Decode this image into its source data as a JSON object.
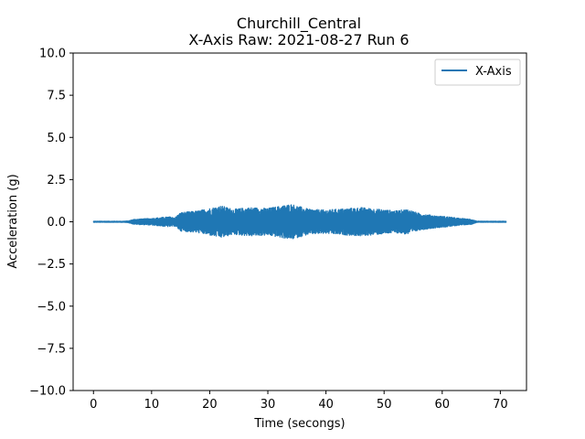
{
  "chart_data": {
    "type": "line",
    "title": "Churchill_Central",
    "subtitle": "X-Axis Raw: 2021-08-27 Run 6",
    "xlabel": "Time (secongs)",
    "ylabel": "Acceleration (g)",
    "xlim": [
      -3.5,
      74.5
    ],
    "ylim": [
      -10.0,
      10.0
    ],
    "xticks": [
      0,
      10,
      20,
      30,
      40,
      50,
      60,
      70
    ],
    "xtick_labels": [
      "0",
      "10",
      "20",
      "30",
      "40",
      "50",
      "60",
      "70"
    ],
    "yticks": [
      -10.0,
      -7.5,
      -5.0,
      -2.5,
      0.0,
      2.5,
      5.0,
      7.5,
      10.0
    ],
    "ytick_labels": [
      "−10.0",
      "−7.5",
      "−5.0",
      "−2.5",
      "0.0",
      "2.5",
      "5.0",
      "7.5",
      "10.0"
    ],
    "grid": false,
    "legend_position": "top-right",
    "series": [
      {
        "name": "X-Axis",
        "color": "#1f77b4",
        "t_start": 0,
        "t_end": 71,
        "envelope_points": [
          [
            0,
            0.03
          ],
          [
            5,
            0.03
          ],
          [
            6,
            0.05
          ],
          [
            7,
            0.15
          ],
          [
            10,
            0.2
          ],
          [
            13,
            0.3
          ],
          [
            14,
            0.25
          ],
          [
            15,
            0.55
          ],
          [
            18,
            0.65
          ],
          [
            22,
            0.95
          ],
          [
            24,
            0.75
          ],
          [
            27,
            0.85
          ],
          [
            30,
            0.8
          ],
          [
            34,
            1.05
          ],
          [
            37,
            0.75
          ],
          [
            40,
            0.7
          ],
          [
            46,
            0.85
          ],
          [
            49,
            0.75
          ],
          [
            52,
            0.65
          ],
          [
            54,
            0.75
          ],
          [
            56,
            0.5
          ],
          [
            59,
            0.35
          ],
          [
            61,
            0.3
          ],
          [
            63,
            0.2
          ],
          [
            65,
            0.15
          ],
          [
            66,
            0.03
          ],
          [
            71,
            0.03
          ]
        ]
      }
    ]
  }
}
